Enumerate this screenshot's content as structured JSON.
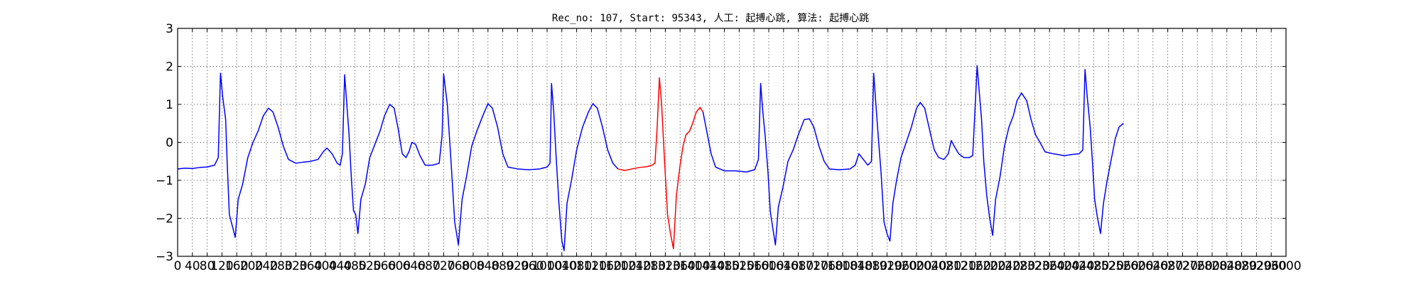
{
  "chart_data": {
    "type": "line",
    "title": "Rec_no: 107, Start: 95343, 人工: 起搏心跳, 算法: 起搏心跳",
    "xlabel": "",
    "ylabel": "",
    "xlim": [
      0,
      3000
    ],
    "ylim": [
      -3,
      3
    ],
    "x_ticks": [
      0,
      40,
      80,
      120,
      160,
      200,
      240,
      280,
      320,
      360,
      400,
      440,
      480,
      520,
      560,
      600,
      640,
      680,
      720,
      760,
      800,
      840,
      880,
      920,
      960,
      1000,
      1040,
      1080,
      1120,
      1160,
      1200,
      1240,
      1280,
      1320,
      1360,
      1400,
      1440,
      1480,
      1520,
      1560,
      1600,
      1640,
      1680,
      1720,
      1760,
      1800,
      1840,
      1880,
      1920,
      1960,
      2000,
      2040,
      2080,
      2120,
      2160,
      2200,
      2240,
      2280,
      2320,
      2360,
      2400,
      2440,
      2480,
      2520,
      2560,
      2600,
      2640,
      2680,
      2720,
      2760,
      2800,
      2840,
      2880,
      2920,
      2960,
      3000
    ],
    "x_tick_labels": [
      "0",
      "40",
      "80",
      "120",
      "160",
      "200",
      "240",
      "280",
      "320",
      "360",
      "400",
      "440",
      "480",
      "520",
      "560",
      "600",
      "640",
      "680",
      "720",
      "760",
      "800",
      "840",
      "880",
      "920",
      "960",
      "1000",
      "1040",
      "1080",
      "1120",
      "1160",
      "1200",
      "1240",
      "1280",
      "1320",
      "1360",
      "1400",
      "1440",
      "1480",
      "1520",
      "1560",
      "1600",
      "1640",
      "1680",
      "1720",
      "1760",
      "1800",
      "1840",
      "1880",
      "1920",
      "1960",
      "2000",
      "2040",
      "2080",
      "2120",
      "2160",
      "2200",
      "2240",
      "2280",
      "2320",
      "2360",
      "2400",
      "2440",
      "2480",
      "2520",
      "2560",
      "2600",
      "2640",
      "2680",
      "2720",
      "2760",
      "2800",
      "2840",
      "2880",
      "2920",
      "2960",
      "3000"
    ],
    "y_ticks": [
      -3,
      -2,
      -1,
      0,
      1,
      2,
      3
    ],
    "y_tick_labels": [
      "−3",
      "−2",
      "−1",
      "0",
      "1",
      "2",
      "3"
    ],
    "grid": true,
    "legend": "none",
    "series": [
      {
        "color": "#0000ff",
        "points": [
          [
            0,
            -0.7
          ],
          [
            20,
            -0.68
          ],
          [
            40,
            -0.69
          ],
          [
            60,
            -0.66
          ],
          [
            80,
            -0.65
          ],
          [
            100,
            -0.6
          ],
          [
            110,
            -0.4
          ],
          [
            116,
            1.82
          ],
          [
            122,
            1.2
          ],
          [
            130,
            0.6
          ],
          [
            134,
            -0.5
          ],
          [
            140,
            -1.9
          ],
          [
            148,
            -2.2
          ],
          [
            156,
            -2.5
          ],
          [
            164,
            -1.5
          ],
          [
            176,
            -1.1
          ],
          [
            190,
            -0.4
          ],
          [
            204,
            0.0
          ],
          [
            218,
            0.3
          ],
          [
            232,
            0.7
          ],
          [
            246,
            0.9
          ],
          [
            258,
            0.8
          ],
          [
            272,
            0.4
          ],
          [
            286,
            -0.1
          ],
          [
            300,
            -0.45
          ],
          [
            320,
            -0.55
          ],
          [
            340,
            -0.52
          ],
          [
            360,
            -0.5
          ],
          [
            380,
            -0.45
          ],
          [
            394,
            -0.25
          ],
          [
            404,
            -0.15
          ],
          [
            418,
            -0.3
          ],
          [
            432,
            -0.55
          ],
          [
            440,
            -0.6
          ],
          [
            446,
            -0.3
          ],
          [
            452,
            1.78
          ],
          [
            458,
            1.0
          ],
          [
            464,
            0.2
          ],
          [
            470,
            -0.9
          ],
          [
            476,
            -1.8
          ],
          [
            482,
            -1.9
          ],
          [
            488,
            -2.4
          ],
          [
            496,
            -1.5
          ],
          [
            508,
            -1.1
          ],
          [
            520,
            -0.4
          ],
          [
            534,
            -0.05
          ],
          [
            548,
            0.3
          ],
          [
            560,
            0.7
          ],
          [
            574,
            1.0
          ],
          [
            586,
            0.9
          ],
          [
            598,
            0.3
          ],
          [
            608,
            -0.3
          ],
          [
            618,
            -0.4
          ],
          [
            626,
            -0.25
          ],
          [
            634,
            0.0
          ],
          [
            644,
            -0.05
          ],
          [
            656,
            -0.35
          ],
          [
            670,
            -0.6
          ],
          [
            690,
            -0.6
          ],
          [
            708,
            -0.55
          ],
          [
            716,
            0.2
          ],
          [
            720,
            1.8
          ],
          [
            730,
            1.0
          ],
          [
            740,
            -0.5
          ],
          [
            750,
            -2.1
          ],
          [
            760,
            -2.7
          ],
          [
            770,
            -1.5
          ],
          [
            782,
            -0.9
          ],
          [
            796,
            -0.1
          ],
          [
            810,
            0.3
          ],
          [
            826,
            0.7
          ],
          [
            840,
            1.02
          ],
          [
            852,
            0.9
          ],
          [
            866,
            0.4
          ],
          [
            880,
            -0.3
          ],
          [
            894,
            -0.65
          ],
          [
            920,
            -0.7
          ],
          [
            950,
            -0.72
          ],
          [
            980,
            -0.7
          ],
          [
            1000,
            -0.65
          ],
          [
            1008,
            -0.55
          ],
          [
            1012,
            1.55
          ],
          [
            1018,
            0.8
          ],
          [
            1024,
            -0.3
          ],
          [
            1032,
            -1.6
          ],
          [
            1040,
            -2.6
          ],
          [
            1046,
            -2.85
          ],
          [
            1054,
            -1.6
          ],
          [
            1066,
            -1.0
          ],
          [
            1080,
            -0.2
          ],
          [
            1096,
            0.4
          ],
          [
            1112,
            0.8
          ],
          [
            1124,
            1.02
          ],
          [
            1136,
            0.9
          ],
          [
            1150,
            0.4
          ],
          [
            1164,
            -0.2
          ],
          [
            1178,
            -0.55
          ],
          [
            1192,
            -0.7
          ]
        ]
      },
      {
        "color": "#ff0000",
        "points": [
          [
            1192,
            -0.7
          ],
          [
            1210,
            -0.74
          ],
          [
            1230,
            -0.7
          ],
          [
            1250,
            -0.66
          ],
          [
            1270,
            -0.64
          ],
          [
            1284,
            -0.6
          ],
          [
            1292,
            -0.55
          ],
          [
            1298,
            0.4
          ],
          [
            1304,
            1.7
          ],
          [
            1310,
            1.0
          ],
          [
            1318,
            -0.5
          ],
          [
            1326,
            -1.9
          ],
          [
            1334,
            -2.4
          ],
          [
            1342,
            -2.8
          ],
          [
            1350,
            -1.4
          ],
          [
            1360,
            -0.6
          ],
          [
            1368,
            -0.1
          ],
          [
            1376,
            0.2
          ],
          [
            1386,
            0.3
          ],
          [
            1394,
            0.5
          ],
          [
            1404,
            0.8
          ],
          [
            1414,
            0.92
          ],
          [
            1422,
            0.8
          ]
        ]
      },
      {
        "color": "#0000ff",
        "points": [
          [
            1422,
            0.8
          ],
          [
            1432,
            0.3
          ],
          [
            1444,
            -0.3
          ],
          [
            1456,
            -0.65
          ],
          [
            1480,
            -0.75
          ],
          [
            1510,
            -0.75
          ],
          [
            1540,
            -0.78
          ],
          [
            1562,
            -0.72
          ],
          [
            1572,
            -0.45
          ],
          [
            1578,
            1.55
          ],
          [
            1584,
            0.8
          ],
          [
            1590,
            0.2
          ],
          [
            1598,
            -0.8
          ],
          [
            1604,
            -1.8
          ],
          [
            1610,
            -2.2
          ],
          [
            1618,
            -2.7
          ],
          [
            1626,
            -1.7
          ],
          [
            1638,
            -1.2
          ],
          [
            1652,
            -0.5
          ],
          [
            1666,
            -0.2
          ],
          [
            1680,
            0.2
          ],
          [
            1696,
            0.6
          ],
          [
            1710,
            0.62
          ],
          [
            1722,
            0.4
          ],
          [
            1736,
            -0.1
          ],
          [
            1750,
            -0.5
          ],
          [
            1764,
            -0.7
          ],
          [
            1790,
            -0.72
          ],
          [
            1820,
            -0.7
          ],
          [
            1834,
            -0.6
          ],
          [
            1844,
            -0.3
          ],
          [
            1856,
            -0.45
          ],
          [
            1868,
            -0.6
          ],
          [
            1878,
            -0.5
          ],
          [
            1884,
            1.82
          ],
          [
            1890,
            1.0
          ],
          [
            1896,
            0.2
          ],
          [
            1904,
            -0.8
          ],
          [
            1912,
            -2.1
          ],
          [
            1920,
            -2.4
          ],
          [
            1928,
            -2.6
          ],
          [
            1936,
            -1.6
          ],
          [
            1946,
            -1.0
          ],
          [
            1958,
            -0.4
          ],
          [
            1972,
            0.0
          ],
          [
            1986,
            0.4
          ],
          [
            2000,
            0.9
          ],
          [
            2010,
            1.05
          ],
          [
            2022,
            0.9
          ],
          [
            2036,
            0.3
          ],
          [
            2048,
            -0.2
          ],
          [
            2060,
            -0.4
          ],
          [
            2074,
            -0.45
          ],
          [
            2086,
            -0.3
          ],
          [
            2094,
            0.05
          ],
          [
            2102,
            -0.1
          ],
          [
            2114,
            -0.3
          ],
          [
            2128,
            -0.4
          ],
          [
            2142,
            -0.4
          ],
          [
            2152,
            -0.35
          ],
          [
            2158,
            0.8
          ],
          [
            2164,
            2.02
          ],
          [
            2170,
            1.3
          ],
          [
            2176,
            0.6
          ],
          [
            2182,
            -0.5
          ],
          [
            2190,
            -1.4
          ],
          [
            2198,
            -2.0
          ],
          [
            2206,
            -2.45
          ],
          [
            2214,
            -1.5
          ],
          [
            2226,
            -0.9
          ],
          [
            2238,
            -0.1
          ],
          [
            2250,
            0.4
          ],
          [
            2262,
            0.7
          ],
          [
            2272,
            1.1
          ],
          [
            2284,
            1.3
          ],
          [
            2298,
            1.1
          ],
          [
            2310,
            0.6
          ],
          [
            2322,
            0.2
          ],
          [
            2334,
            0.0
          ],
          [
            2348,
            -0.25
          ],
          [
            2370,
            -0.3
          ],
          [
            2400,
            -0.35
          ],
          [
            2420,
            -0.32
          ],
          [
            2440,
            -0.3
          ],
          [
            2450,
            -0.2
          ],
          [
            2456,
            1.92
          ],
          [
            2462,
            1.2
          ],
          [
            2470,
            0.4
          ],
          [
            2476,
            -0.5
          ],
          [
            2482,
            -1.5
          ],
          [
            2490,
            -2.0
          ],
          [
            2498,
            -2.4
          ],
          [
            2506,
            -1.6
          ],
          [
            2516,
            -1.0
          ],
          [
            2528,
            -0.4
          ],
          [
            2538,
            0.1
          ],
          [
            2548,
            0.4
          ],
          [
            2560,
            0.5
          ]
        ]
      }
    ]
  }
}
